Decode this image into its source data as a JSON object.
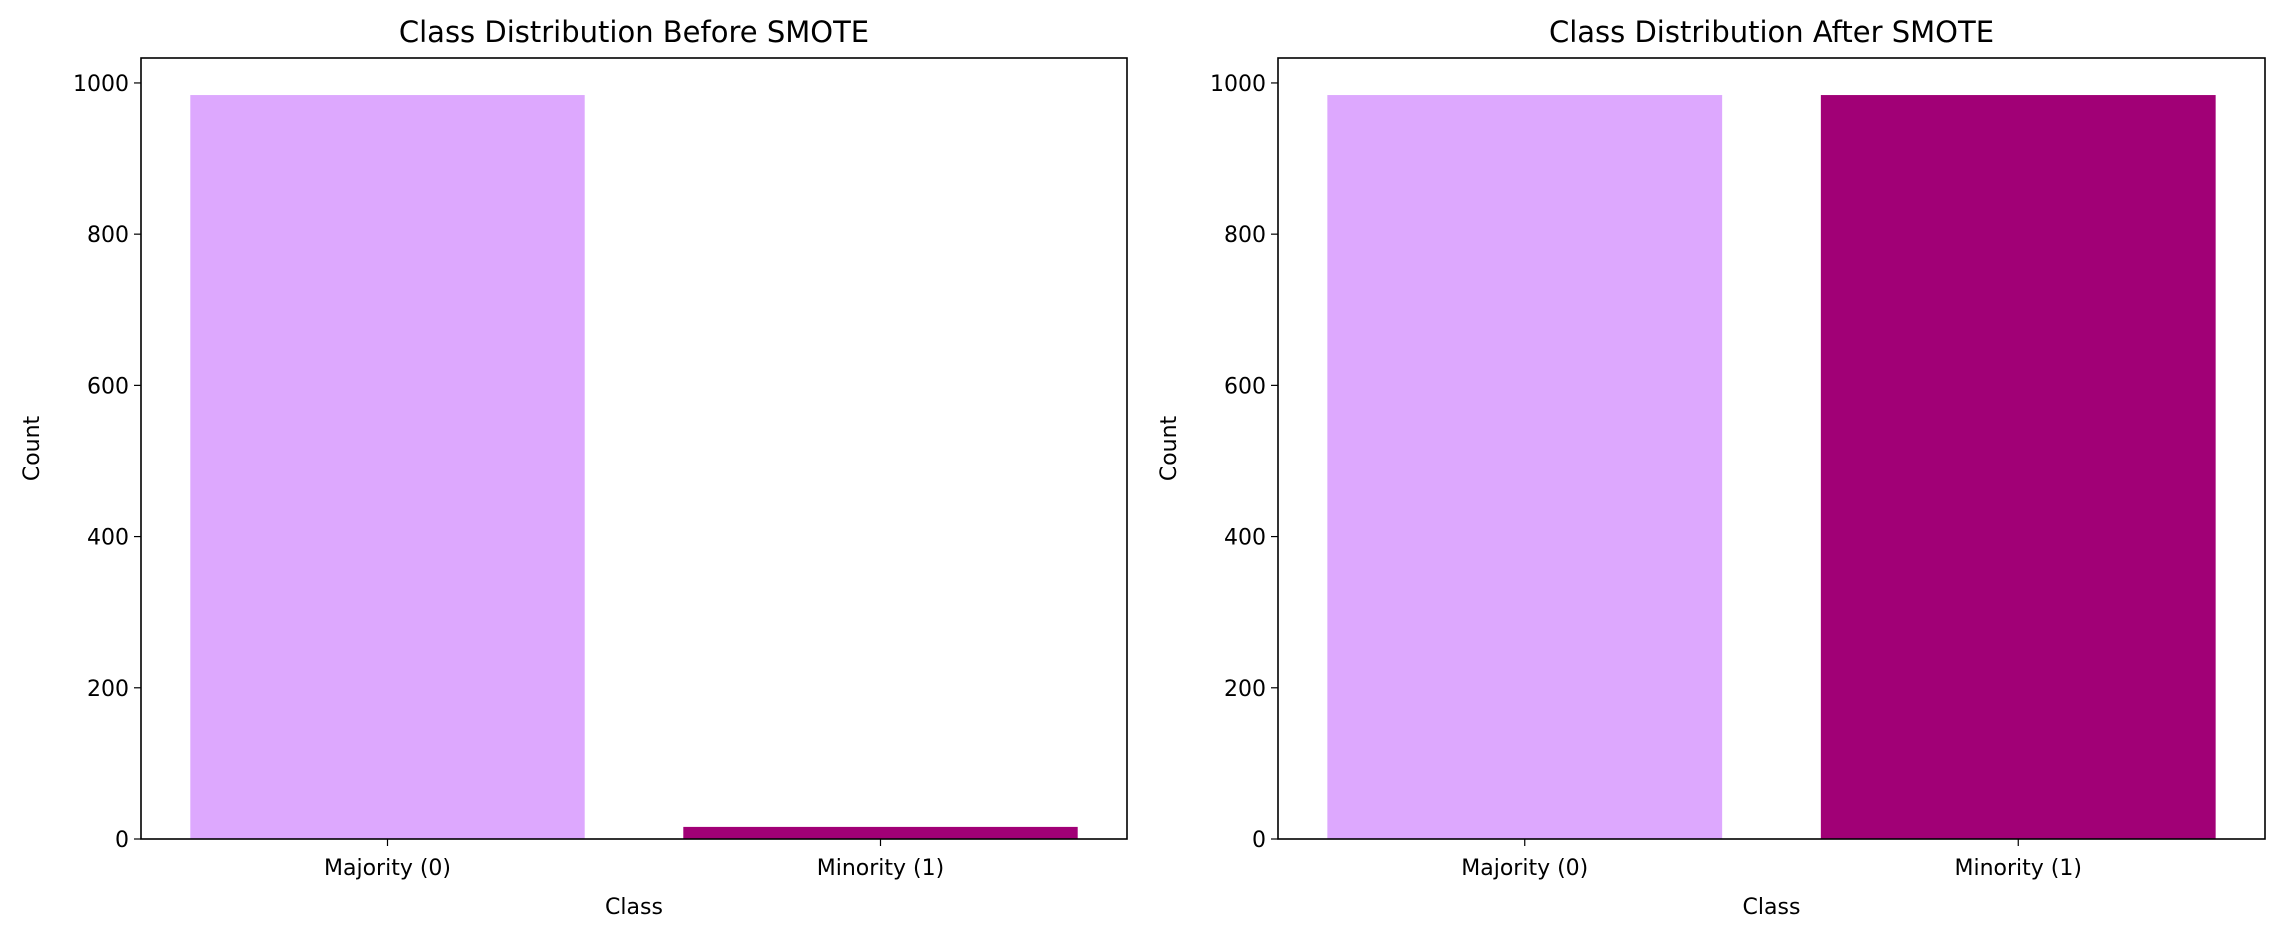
{
  "chart_data": [
    {
      "type": "bar",
      "title": "Class Distribution Before SMOTE",
      "xlabel": "Class",
      "ylabel": "Count",
      "categories": [
        "Majority (0)",
        "Minority (1)"
      ],
      "values": [
        984,
        16
      ],
      "colors": [
        "#dda8fe",
        "#a10076"
      ],
      "ylim": [
        0,
        1033
      ],
      "yticks": [
        0,
        200,
        400,
        600,
        800,
        1000
      ],
      "grid": false
    },
    {
      "type": "bar",
      "title": "Class Distribution After SMOTE",
      "xlabel": "Class",
      "ylabel": "Count",
      "categories": [
        "Majority (0)",
        "Minority (1)"
      ],
      "values": [
        984,
        984
      ],
      "colors": [
        "#dda8fe",
        "#a10076"
      ],
      "ylim": [
        0,
        1033
      ],
      "yticks": [
        0,
        200,
        400,
        600,
        800,
        1000
      ],
      "grid": false
    }
  ]
}
